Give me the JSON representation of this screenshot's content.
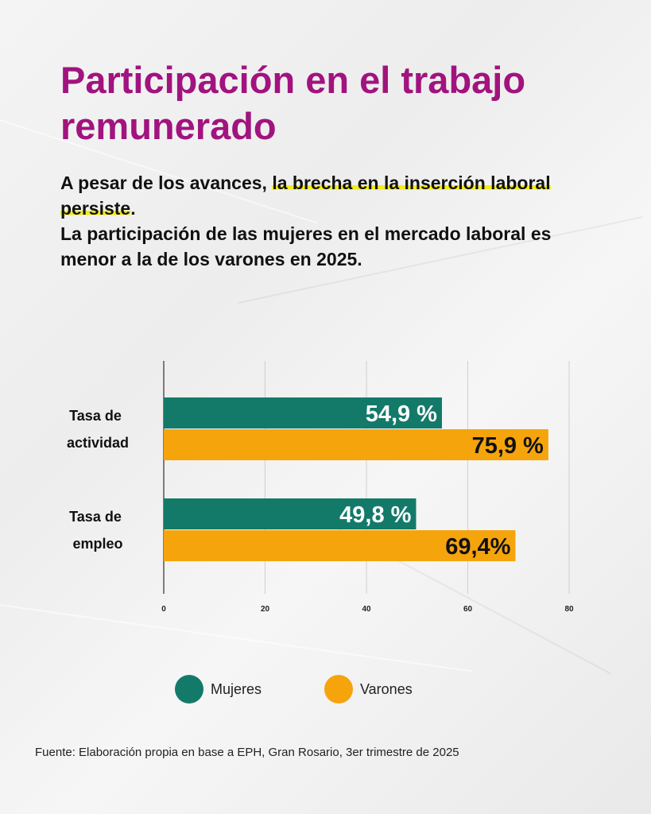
{
  "title": "Participación en el trabajo remunerado",
  "subtitle": {
    "part1": "A pesar de los avances, ",
    "highlight": "la brecha en la inserción laboral persiste",
    "part2": ".",
    "line2": "La participación de las mujeres en el mercado laboral es menor a la de los varones en 2025."
  },
  "colors": {
    "title": "#a1137e",
    "mujeres": "#137a69",
    "varones": "#f5a40c",
    "highlight": "#f2ec1c"
  },
  "chart_data": {
    "type": "bar",
    "orientation": "horizontal",
    "categories": [
      {
        "line1": "Tasa de",
        "line2": "actividad"
      },
      {
        "line1": "Tasa de",
        "line2": "empleo"
      }
    ],
    "series": [
      {
        "name": "Mujeres",
        "values": [
          54.9,
          49.8
        ],
        "labels": [
          "54,9 %",
          "49,8 %"
        ],
        "label_color": "#ffffff"
      },
      {
        "name": "Varones",
        "values": [
          75.9,
          69.4
        ],
        "labels": [
          "75,9 %",
          "69,4%"
        ],
        "label_color": "#111111"
      }
    ],
    "xlim": [
      0,
      80
    ],
    "xticks": [
      0,
      20,
      40,
      60,
      80
    ],
    "grid": true,
    "legend": "bottom"
  },
  "legend": {
    "mujeres_label": "Mujeres",
    "varones_label": "Varones"
  },
  "source": "Fuente:  Elaboración propia en base a EPH, Gran Rosario, 3er trimestre de 2025"
}
